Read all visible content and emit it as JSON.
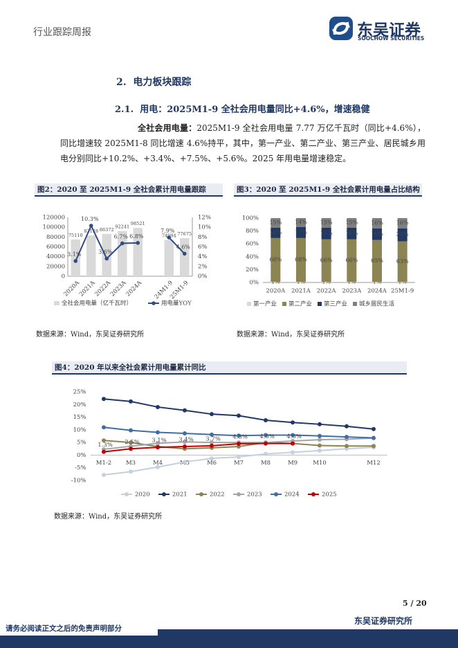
{
  "header": {
    "report_type": "行业跟踪周报",
    "logo_name": "东吴证券",
    "logo_en": "SOOCHOW SECURITIES"
  },
  "section": {
    "title": "2.  电力板块跟踪",
    "subtitle": "2.1.  用电：2025M1-9 全社会用电量同比+4.6%，增速稳健"
  },
  "paragraph": {
    "lead": "全社会用电量：",
    "body": "2025M1-9 全社会用电量 7.77 万亿千瓦时（同比+4.6%），同比增速较 2025M1-8 同比增速 4.6%持平，其中，第一产业、第二产业、第三产业、居民城乡用电分别同比+10.2%、+3.4%、+7.5%、+5.6%。2025 年用电量增速稳定。"
  },
  "chart_data": [
    {
      "type": "combo",
      "title": "图2：2020 至 2025M1-9 全社会累计用电量跟踪",
      "source": "数据来源：Wind，东吴证券研究所",
      "categories": [
        "2020A",
        "2021A",
        "2022A",
        "2023A",
        "2024A",
        null,
        "24M1-9",
        "25M1-9"
      ],
      "series": [
        {
          "name": "全社会用电量（亿千瓦时）",
          "type": "bar",
          "color": "#d9d9d9",
          "values": [
            75110,
            83128,
            86372,
            92241,
            98521,
            null,
            74094,
            77675
          ]
        },
        {
          "name": "用电量YOY",
          "type": "line",
          "axis": "y2",
          "color": "#2f4d7e",
          "values": [
            3.1,
            10.3,
            3.6,
            6.7,
            6.8,
            null,
            7.9,
            4.6
          ],
          "value_labels": [
            "3.1%",
            "10.3%",
            "3.6%",
            "6.7%",
            "6.8%",
            null,
            "7.9%",
            "4.6%"
          ]
        }
      ],
      "ylim": [
        0,
        120000
      ],
      "yticks": [
        0,
        20000,
        40000,
        60000,
        80000,
        100000,
        120000
      ],
      "y2lim": [
        0,
        12
      ],
      "y2ticks": [
        {
          "value": 0,
          "label": "0%"
        },
        {
          "value": 2,
          "label": "2%"
        },
        {
          "value": 4,
          "label": "4%"
        },
        {
          "value": 6,
          "label": "6%"
        },
        {
          "value": 8,
          "label": "8%"
        },
        {
          "value": 10,
          "label": "10%"
        },
        {
          "value": 12,
          "label": "12%"
        }
      ],
      "grid": false
    },
    {
      "type": "stacked_bar",
      "title": "图3：2020 至 2025M1-9 全社会累计用电量占比结构",
      "source": "数据来源：Wind，东吴证券研究所",
      "categories": [
        "2020A",
        "2021A",
        "2022A",
        "2023A",
        "2024A",
        "25M1-9"
      ],
      "series": [
        {
          "name": "第一产业",
          "color": "#d9d9d9",
          "values": [
            1,
            1,
            1,
            1,
            1,
            1
          ],
          "value_labels": [
            "1%",
            "1%",
            "1%",
            "1%",
            "1%",
            "1%"
          ]
        },
        {
          "name": "第二产业",
          "color": "#8c8453",
          "values": [
            68,
            68,
            66,
            66,
            65,
            63
          ],
          "value_labels": [
            "68%",
            "68%",
            "66%",
            "66%",
            "65%",
            "63%"
          ]
        },
        {
          "name": "第三产业",
          "color": "#1f3864",
          "values": [
            16,
            17,
            18,
            18,
            18,
            20
          ],
          "value_labels": [
            "16%",
            "17%",
            "18%",
            "18%",
            "18%",
            "20%"
          ]
        },
        {
          "name": "城乡居民生活",
          "color": "#7f7f7f",
          "values": [
            15,
            14,
            15,
            15,
            16,
            16
          ],
          "value_labels": [
            "15%",
            "14%",
            "15%",
            "15%",
            "16%",
            "16%"
          ]
        }
      ],
      "ylim": [
        0,
        100
      ],
      "yticks": [
        {
          "value": 0,
          "label": "0%"
        },
        {
          "value": 20,
          "label": "20%"
        },
        {
          "value": 40,
          "label": "40%"
        },
        {
          "value": 60,
          "label": "60%"
        },
        {
          "value": 80,
          "label": "80%"
        },
        {
          "value": 100,
          "label": "100%"
        }
      ],
      "grid": false
    },
    {
      "type": "line",
      "title": "图4：2020 年以来全社会累计用电量累计同比",
      "source": "数据来源：Wind，东吴证券研究所",
      "categories": [
        "M1-2",
        "M3",
        "M4",
        "M5",
        "M6",
        "M7",
        "M8",
        "M9",
        "M10",
        null,
        "M12"
      ],
      "series": [
        {
          "name": "2020",
          "color": "#c5d0de",
          "values": [
            -7.8,
            -6.5,
            -4.7,
            -2.7,
            -1.3,
            -0.7,
            0.5,
            1.1,
            1.8,
            2.5,
            3.1
          ]
        },
        {
          "name": "2021",
          "color": "#1f3864",
          "values": [
            22.2,
            21.2,
            19.0,
            17.7,
            16.2,
            15.6,
            13.8,
            12.9,
            12.2,
            11.4,
            10.3
          ]
        },
        {
          "name": "2022",
          "color": "#8c8453",
          "values": [
            5.8,
            5.0,
            3.4,
            2.5,
            2.9,
            3.4,
            5.0,
            4.6,
            3.8,
            3.6,
            3.6
          ]
        },
        {
          "name": "2023",
          "color": "#a5a5a5",
          "values": [
            2.3,
            3.5,
            4.7,
            5.2,
            5.0,
            5.0,
            5.0,
            5.6,
            6.1,
            6.3,
            6.7
          ]
        },
        {
          "name": "2024",
          "color": "#3f6ea6",
          "values": [
            11.0,
            9.8,
            9.0,
            8.6,
            8.1,
            7.7,
            7.9,
            7.9,
            7.6,
            7.2,
            6.8
          ]
        },
        {
          "name": "2025",
          "color": "#c00000",
          "values": [
            1.3,
            2.5,
            3.1,
            3.4,
            3.7,
            4.5,
            4.6,
            4.6,
            null,
            null,
            null
          ],
          "value_labels": [
            "1.3%",
            "2.5%",
            "3.1%",
            "3.4%",
            "3.7%",
            "4.5%",
            "4.6%",
            "4.6%",
            null,
            null,
            null
          ]
        }
      ],
      "ylim": [
        -10,
        25
      ],
      "yticks": [
        {
          "value": -10,
          "label": "-10%"
        },
        {
          "value": -5,
          "label": "-5%"
        },
        {
          "value": 0,
          "label": "0%"
        },
        {
          "value": 5,
          "label": "5%"
        },
        {
          "value": 10,
          "label": "10%"
        },
        {
          "value": 15,
          "label": "15%"
        },
        {
          "value": 20,
          "label": "20%"
        },
        {
          "value": 25,
          "label": "25%"
        }
      ],
      "grid": false
    }
  ],
  "footer": {
    "page": "5 / 20",
    "org": "东吴证券研究所",
    "disclaimer": "请务必阅读正文之后的免责声明部分"
  }
}
